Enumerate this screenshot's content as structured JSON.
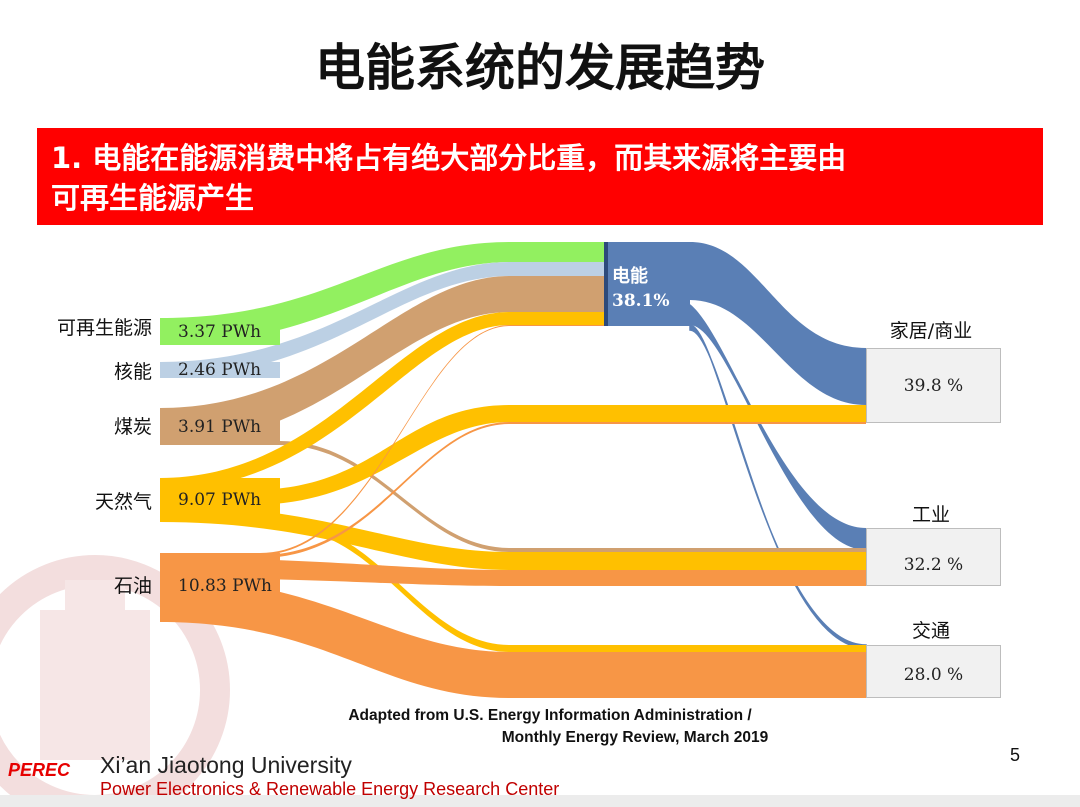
{
  "slide": {
    "title": "电能系统的发展趋势",
    "banner_line1": "1. 电能在能源消费中将占有绝大部分比重，而其来源将主要由",
    "banner_line2": "可再生能源产生",
    "page_number": "5"
  },
  "sources": [
    {
      "key": "renewable",
      "label": "可再生能源",
      "value_text": "3.37 PWh",
      "value": 3.37,
      "color": "#92f060"
    },
    {
      "key": "nuclear",
      "label": "核能",
      "value_text": "2.46 PWh",
      "value": 2.46,
      "color": "#bcd0e4"
    },
    {
      "key": "coal",
      "label": "煤炭",
      "value_text": "3.91 PWh",
      "value": 3.91,
      "color": "#d0a070"
    },
    {
      "key": "gas",
      "label": "天然气",
      "value_text": "9.07 PWh",
      "value": 9.07,
      "color": "#ffc000"
    },
    {
      "key": "oil",
      "label": "石油",
      "value_text": "10.83 PWh",
      "value": 10.83,
      "color": "#f79646"
    }
  ],
  "electricity": {
    "label": "电能",
    "share_text": "38.1%",
    "share": 38.1,
    "color": "#5a7fb5"
  },
  "sectors": [
    {
      "key": "residential",
      "label": "家居/商业",
      "pct_text": "39.8 %",
      "pct": 39.8
    },
    {
      "key": "industry",
      "label": "工业",
      "pct_text": "32.2 %",
      "pct": 32.2
    },
    {
      "key": "transport",
      "label": "交通",
      "pct_text": "28.0 %",
      "pct": 28.0
    }
  ],
  "note": {
    "line1": "Adapted from U.S. Energy Information Administration /",
    "line2": "Monthly Energy Review, March 2019"
  },
  "footer": {
    "logo_text": "PEREC",
    "university": "Xi’an Jiaotong University",
    "center": "Power Electronics & Renewable Energy Research Center"
  }
}
